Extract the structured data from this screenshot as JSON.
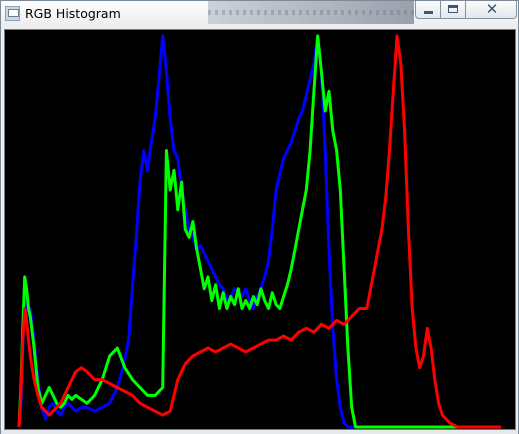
{
  "window": {
    "title": "RGB Histogram",
    "icon": "app-window-icon",
    "controls": {
      "minimize_icon": "minimize-icon",
      "maximize_icon": "maximize-icon",
      "close_icon": "close-icon",
      "close_glyph": "✕"
    }
  },
  "chart_data": {
    "type": "line",
    "title": "",
    "xlabel": "",
    "ylabel": "",
    "background": "#000000",
    "grid": false,
    "xlim": [
      0,
      255
    ],
    "ylim": [
      0,
      1
    ],
    "series": [
      {
        "color": "#0000ff",
        "x": [
          0,
          1,
          2,
          3,
          4,
          5,
          6,
          8,
          10,
          12,
          14,
          16,
          18,
          20,
          22,
          24,
          26,
          28,
          30,
          33,
          36,
          40,
          44,
          48,
          52,
          55,
          58,
          60,
          62,
          64,
          66,
          68,
          70,
          72,
          74,
          76,
          78,
          80,
          82,
          84,
          86,
          88,
          90,
          92,
          94,
          96,
          98,
          100,
          102,
          104,
          106,
          108,
          110,
          112,
          114,
          116,
          118,
          120,
          122,
          124,
          126,
          128,
          130,
          132,
          134,
          136,
          138,
          140,
          142,
          144,
          146,
          148,
          150,
          152,
          154,
          156,
          158,
          160,
          162,
          164,
          166,
          168,
          170,
          172,
          174,
          176,
          178,
          180,
          182,
          184,
          186,
          188,
          190,
          192,
          194,
          196,
          200,
          210,
          230,
          255
        ],
        "y": [
          0.0,
          0.05,
          0.2,
          0.35,
          0.32,
          0.28,
          0.3,
          0.22,
          0.12,
          0.05,
          0.02,
          0.05,
          0.06,
          0.04,
          0.03,
          0.05,
          0.06,
          0.05,
          0.04,
          0.05,
          0.05,
          0.04,
          0.05,
          0.06,
          0.1,
          0.15,
          0.22,
          0.35,
          0.48,
          0.62,
          0.7,
          0.65,
          0.72,
          0.78,
          0.88,
          0.99,
          0.9,
          0.78,
          0.7,
          0.68,
          0.6,
          0.55,
          0.5,
          0.48,
          0.45,
          0.46,
          0.44,
          0.42,
          0.4,
          0.38,
          0.36,
          0.35,
          0.32,
          0.33,
          0.35,
          0.34,
          0.33,
          0.35,
          0.32,
          0.3,
          0.33,
          0.35,
          0.38,
          0.42,
          0.5,
          0.6,
          0.64,
          0.68,
          0.7,
          0.72,
          0.75,
          0.78,
          0.8,
          0.84,
          0.88,
          0.92,
          0.99,
          0.9,
          0.7,
          0.45,
          0.25,
          0.12,
          0.05,
          0.01,
          0.0,
          0.0,
          0.0,
          0.0,
          0.0,
          0.0,
          0.0,
          0.0,
          0.0,
          0.0,
          0.0,
          0.0,
          0.0,
          0.0,
          0.0,
          0.0
        ]
      },
      {
        "color": "#00ff00",
        "x": [
          0,
          1,
          2,
          3,
          4,
          5,
          6,
          8,
          10,
          12,
          14,
          16,
          18,
          20,
          22,
          24,
          26,
          28,
          30,
          33,
          36,
          40,
          44,
          48,
          52,
          56,
          60,
          64,
          68,
          72,
          76,
          78,
          80,
          82,
          84,
          86,
          88,
          90,
          92,
          94,
          96,
          98,
          100,
          102,
          104,
          106,
          108,
          110,
          112,
          114,
          116,
          118,
          120,
          122,
          124,
          126,
          128,
          130,
          132,
          134,
          136,
          138,
          140,
          142,
          144,
          146,
          148,
          150,
          152,
          154,
          156,
          158,
          160,
          162,
          164,
          166,
          168,
          170,
          172,
          174,
          176,
          178,
          180,
          182,
          184,
          186,
          188,
          190,
          192,
          194,
          196,
          200,
          210,
          230,
          255
        ],
        "y": [
          0.0,
          0.1,
          0.25,
          0.38,
          0.35,
          0.3,
          0.28,
          0.2,
          0.1,
          0.06,
          0.08,
          0.1,
          0.08,
          0.06,
          0.05,
          0.06,
          0.08,
          0.07,
          0.08,
          0.07,
          0.06,
          0.08,
          0.12,
          0.18,
          0.2,
          0.15,
          0.12,
          0.1,
          0.08,
          0.08,
          0.1,
          0.7,
          0.6,
          0.65,
          0.55,
          0.62,
          0.5,
          0.48,
          0.52,
          0.45,
          0.4,
          0.35,
          0.38,
          0.32,
          0.36,
          0.3,
          0.34,
          0.3,
          0.33,
          0.31,
          0.35,
          0.3,
          0.32,
          0.3,
          0.33,
          0.31,
          0.35,
          0.32,
          0.3,
          0.34,
          0.31,
          0.3,
          0.33,
          0.36,
          0.4,
          0.45,
          0.5,
          0.55,
          0.6,
          0.7,
          0.85,
          0.99,
          0.9,
          0.8,
          0.85,
          0.75,
          0.7,
          0.6,
          0.4,
          0.2,
          0.05,
          0.0,
          0.0,
          0.0,
          0.0,
          0.0,
          0.0,
          0.0,
          0.0,
          0.0,
          0.0,
          0.0,
          0.0,
          0.0,
          0.0
        ]
      },
      {
        "color": "#ff0000",
        "x": [
          0,
          1,
          2,
          3,
          4,
          5,
          6,
          8,
          10,
          12,
          14,
          16,
          18,
          20,
          22,
          24,
          26,
          28,
          30,
          33,
          36,
          40,
          44,
          48,
          52,
          56,
          60,
          64,
          68,
          72,
          76,
          80,
          84,
          88,
          92,
          96,
          100,
          104,
          108,
          112,
          116,
          120,
          124,
          128,
          132,
          136,
          140,
          144,
          148,
          152,
          156,
          160,
          164,
          168,
          172,
          176,
          180,
          184,
          186,
          188,
          190,
          192,
          194,
          196,
          198,
          200,
          202,
          204,
          206,
          208,
          210,
          212,
          214,
          216,
          218,
          220,
          222,
          224,
          228,
          232,
          236,
          240,
          244,
          248,
          252,
          255
        ],
        "y": [
          0.0,
          0.08,
          0.22,
          0.3,
          0.27,
          0.22,
          0.18,
          0.12,
          0.08,
          0.05,
          0.04,
          0.03,
          0.04,
          0.05,
          0.06,
          0.08,
          0.1,
          0.12,
          0.14,
          0.15,
          0.14,
          0.12,
          0.12,
          0.11,
          0.1,
          0.09,
          0.08,
          0.06,
          0.05,
          0.04,
          0.03,
          0.04,
          0.12,
          0.16,
          0.18,
          0.19,
          0.2,
          0.19,
          0.2,
          0.21,
          0.2,
          0.19,
          0.2,
          0.21,
          0.22,
          0.22,
          0.23,
          0.22,
          0.24,
          0.25,
          0.24,
          0.26,
          0.25,
          0.27,
          0.26,
          0.28,
          0.3,
          0.3,
          0.35,
          0.4,
          0.45,
          0.5,
          0.58,
          0.7,
          0.85,
          0.99,
          0.92,
          0.75,
          0.5,
          0.3,
          0.2,
          0.15,
          0.18,
          0.25,
          0.2,
          0.12,
          0.06,
          0.03,
          0.01,
          0.0,
          0.0,
          0.0,
          0.0,
          0.0,
          0.0,
          0.0
        ]
      }
    ]
  }
}
